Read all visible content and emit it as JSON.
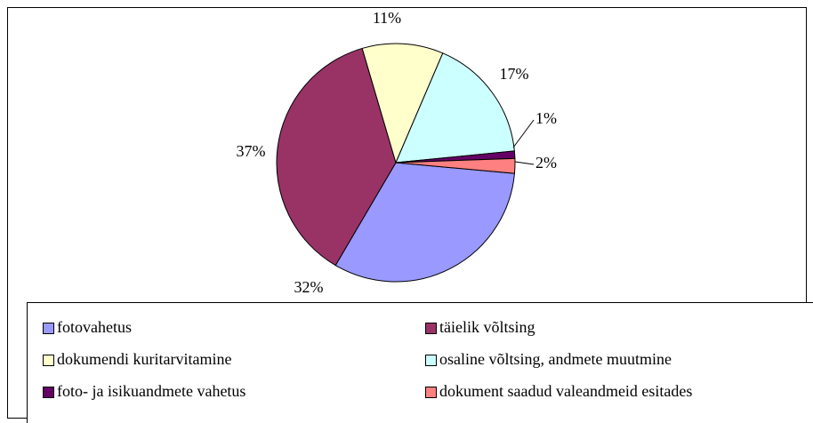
{
  "chart_data": {
    "type": "pie",
    "categories": [
      "fotovahetus",
      "täielik võltsing",
      "dokumendi kuritarvitamine",
      "osaline võltsing, andmete muutmine",
      "foto- ja isikuandmete vahetus",
      "dokument saadud valeandmeid esitades"
    ],
    "values": [
      32,
      37,
      11,
      17,
      1,
      2
    ],
    "value_labels": [
      "32%",
      "37%",
      "11%",
      "17%",
      "1%",
      "2%"
    ],
    "colors": [
      "#9999ff",
      "#993366",
      "#ffffcc",
      "#ccffff",
      "#660066",
      "#ff8080"
    ],
    "legend": "bottom"
  }
}
